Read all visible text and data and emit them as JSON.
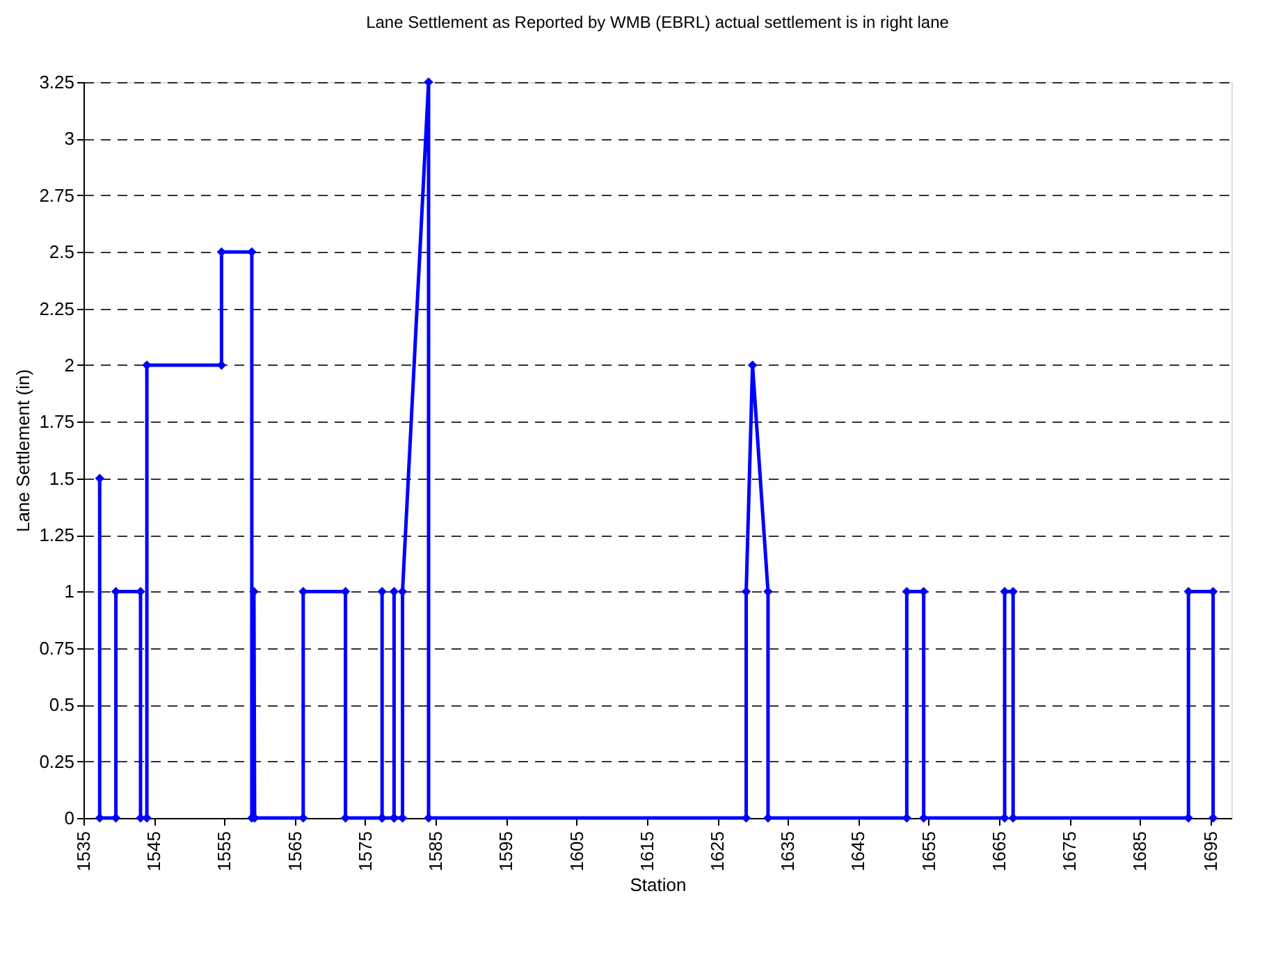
{
  "chart_data": {
    "type": "line",
    "title": "Lane Settlement as Reported by WMB (EBRL) actual settlement is in right lane",
    "xlabel": "Station",
    "ylabel": "Lane Settlement (in)",
    "series": [
      {
        "color": "#0000ff",
        "x": [
          1537.3,
          1537.3,
          1539.6,
          1539.6,
          1543.1,
          1543.1,
          1544.0,
          1544.0,
          1554.6,
          1554.6,
          1558.9,
          1558.9,
          1559.2,
          1559.3,
          1566.2,
          1566.2,
          1572.2,
          1572.2,
          1577.4,
          1577.4,
          1577.4,
          1579.1,
          1579.1,
          1579.1,
          1580.3,
          1580.3,
          1584.0,
          1584.0,
          1629.1,
          1629.1,
          1630.0,
          1632.2,
          1632.2,
          1651.9,
          1651.9,
          1654.3,
          1654.3,
          1665.8,
          1665.8,
          1667.0,
          1667.0,
          1691.9,
          1691.9,
          1695.4,
          1695.4
        ],
        "values": [
          1.5,
          0,
          0,
          1,
          1,
          0,
          0,
          2,
          2,
          2.5,
          2.5,
          0,
          1,
          0,
          0,
          1,
          1,
          0,
          0,
          1,
          0,
          0,
          1,
          0,
          0,
          1,
          3.25,
          0,
          0,
          1,
          2,
          1,
          0,
          0,
          1,
          1,
          0,
          0,
          1,
          1,
          0,
          0,
          1,
          1,
          0
        ]
      }
    ],
    "xlim": [
      1535,
      1698
    ],
    "xticks": [
      1535,
      1545,
      1555,
      1565,
      1575,
      1585,
      1595,
      1605,
      1615,
      1625,
      1635,
      1645,
      1655,
      1665,
      1675,
      1685,
      1695
    ],
    "ylim": [
      0,
      3.25
    ],
    "yticks": [
      0,
      0.25,
      0.5,
      0.75,
      1,
      1.25,
      1.5,
      1.75,
      2,
      2.25,
      2.5,
      2.75,
      3,
      3.25
    ],
    "grid": "y",
    "marker": "diamond",
    "line_style": "solid"
  }
}
